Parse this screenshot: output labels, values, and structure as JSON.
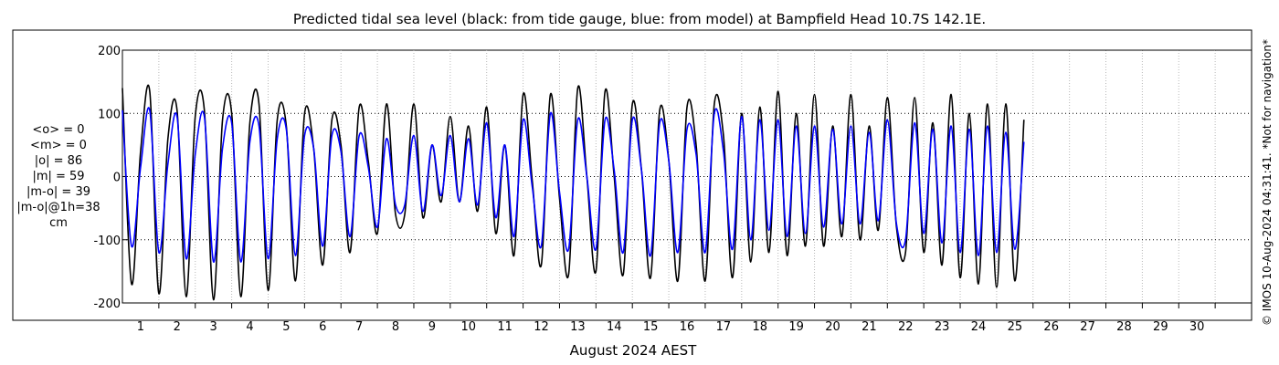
{
  "chart_data": {
    "type": "line",
    "title": "Predicted tidal sea level (black: from tide gauge, blue: from model) at Bampfield Head 10.7S 142.1E.",
    "xlabel": "August 2024 AEST",
    "ylabel": "",
    "xlim": [
      0,
      31
    ],
    "ylim": [
      -200,
      200
    ],
    "x_ticks": [
      "1",
      "2",
      "3",
      "4",
      "5",
      "6",
      "7",
      "8",
      "9",
      "10",
      "11",
      "12",
      "13",
      "14",
      "15",
      "16",
      "17",
      "18",
      "19",
      "20",
      "21",
      "22",
      "23",
      "24",
      "25",
      "26",
      "27",
      "28",
      "29",
      "30"
    ],
    "y_ticks": [
      -200,
      -100,
      0,
      100,
      200
    ],
    "grid": {
      "x": true,
      "y": true
    },
    "series": [
      {
        "name": "tide gauge",
        "color": "#000000",
        "step_days": 0.25,
        "values": [
          140,
          -170,
          40,
          135,
          -185,
          60,
          105,
          -190,
          95,
          105,
          -195,
          90,
          100,
          -190,
          85,
          115,
          -180,
          90,
          80,
          -165,
          100,
          45,
          -140,
          90,
          50,
          -120,
          110,
          25,
          -90,
          115,
          -60,
          -60,
          115,
          -65,
          50,
          -40,
          95,
          -40,
          80,
          -55,
          110,
          -90,
          50,
          -125,
          130,
          -5,
          -140,
          130,
          -35,
          -155,
          140,
          0,
          -150,
          135,
          0,
          -155,
          115,
          10,
          -160,
          105,
          25,
          -165,
          110,
          50,
          -165,
          115,
          65,
          -160,
          100,
          -135,
          110,
          -120,
          135,
          -125,
          100,
          -110,
          130,
          -110,
          80,
          -95,
          130,
          -100,
          80,
          -85,
          125,
          -80,
          -120,
          125,
          -120,
          85,
          -140,
          130,
          -160,
          100,
          -170,
          115,
          -175,
          115,
          -165,
          90
        ]
      },
      {
        "name": "model",
        "color": "#0000ff",
        "step_days": 0.25,
        "values": [
          105,
          -110,
          15,
          105,
          -120,
          20,
          95,
          -130,
          35,
          95,
          -135,
          45,
          85,
          -135,
          55,
          80,
          -130,
          60,
          75,
          -125,
          65,
          45,
          -110,
          65,
          40,
          -95,
          65,
          15,
          -80,
          60,
          -45,
          -45,
          65,
          -55,
          50,
          -30,
          65,
          -40,
          60,
          -45,
          85,
          -65,
          50,
          -95,
          90,
          -15,
          -110,
          100,
          -25,
          -115,
          90,
          0,
          -115,
          90,
          10,
          -120,
          90,
          10,
          -125,
          85,
          25,
          -120,
          75,
          35,
          -120,
          100,
          40,
          -115,
          95,
          -100,
          90,
          -85,
          90,
          -95,
          80,
          -90,
          80,
          -80,
          75,
          -75,
          80,
          -75,
          70,
          -70,
          90,
          -75,
          -100,
          85,
          -90,
          75,
          -105,
          80,
          -120,
          75,
          -125,
          80,
          -120,
          70,
          -115,
          55
        ]
      }
    ]
  },
  "stats": {
    "lines": [
      "<o> = 0",
      "<m> = 0",
      "|o| = 86",
      "|m| = 59",
      "|m-o| = 39",
      "|m-o|@1h=38",
      "cm"
    ]
  },
  "credit": "© IMOS 10-Aug-2024 04:31:41. *Not for navigation*"
}
